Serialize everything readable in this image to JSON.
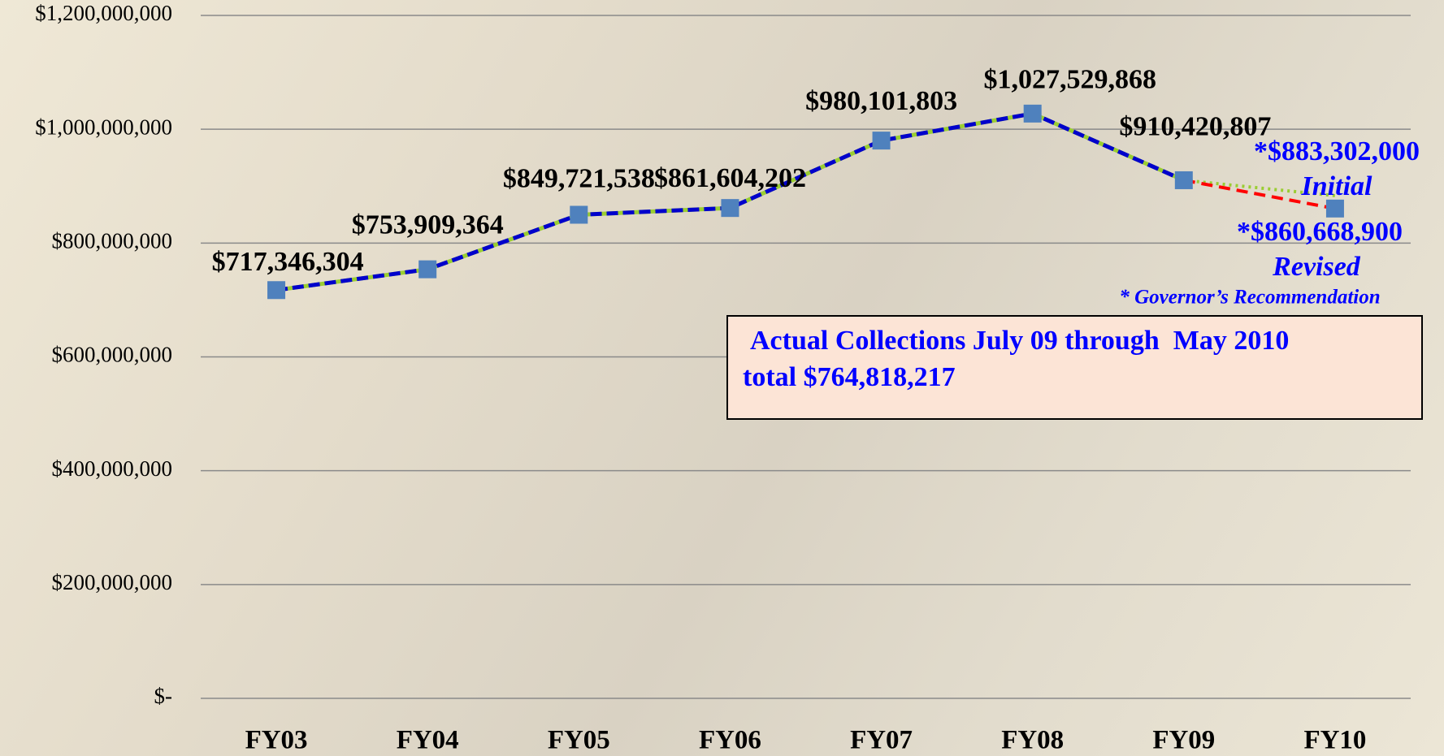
{
  "chart_data": {
    "type": "line",
    "categories": [
      "FY03",
      "FY04",
      "FY05",
      "FY06",
      "FY07",
      "FY08",
      "FY09",
      "FY10"
    ],
    "series": [
      {
        "color": "#0000cc",
        "marker_color": "#4f81bd",
        "values": [
          717346304,
          753909364,
          849721538,
          861604202,
          980101803,
          1027529868,
          910420807,
          null
        ],
        "value_labels": [
          "$717,346,304",
          "$753,909,364",
          "$849,721,538",
          "$861,604,202",
          "$980,101,803",
          "$1,027,529,868",
          "$910,420,807",
          null
        ]
      },
      {
        "color": "#ff0000",
        "values": [
          null,
          null,
          null,
          null,
          null,
          null,
          910420807,
          860668900
        ],
        "value_labels": [
          null,
          null,
          null,
          null,
          null,
          null,
          null,
          "*$860,668,900"
        ]
      },
      {
        "color": "#9acd32",
        "values": [
          null,
          null,
          null,
          null,
          null,
          null,
          910420807,
          883302000
        ],
        "value_labels": [
          null,
          null,
          null,
          null,
          null,
          null,
          null,
          "*$883,302,000"
        ]
      }
    ],
    "ylim": [
      0,
      1200000000
    ],
    "yticks": [
      {
        "value": 0,
        "label": "$-"
      },
      {
        "value": 200000000,
        "label": "$200,000,000"
      },
      {
        "value": 400000000,
        "label": "$400,000,000"
      },
      {
        "value": 600000000,
        "label": "$600,000,000"
      },
      {
        "value": 800000000,
        "label": "$800,000,000"
      },
      {
        "value": 1000000000,
        "label": "$1,000,000,000"
      },
      {
        "value": 1200000000,
        "label": "$1,200,000,000"
      }
    ],
    "grid": true,
    "annotations": {
      "initial": "Initial",
      "revised": "Revised",
      "footnote": "* Governor’s Recommendation",
      "box_line1": "Actual Collections July 09 through  May 2010",
      "box_line2": "total $764,818,217"
    }
  }
}
